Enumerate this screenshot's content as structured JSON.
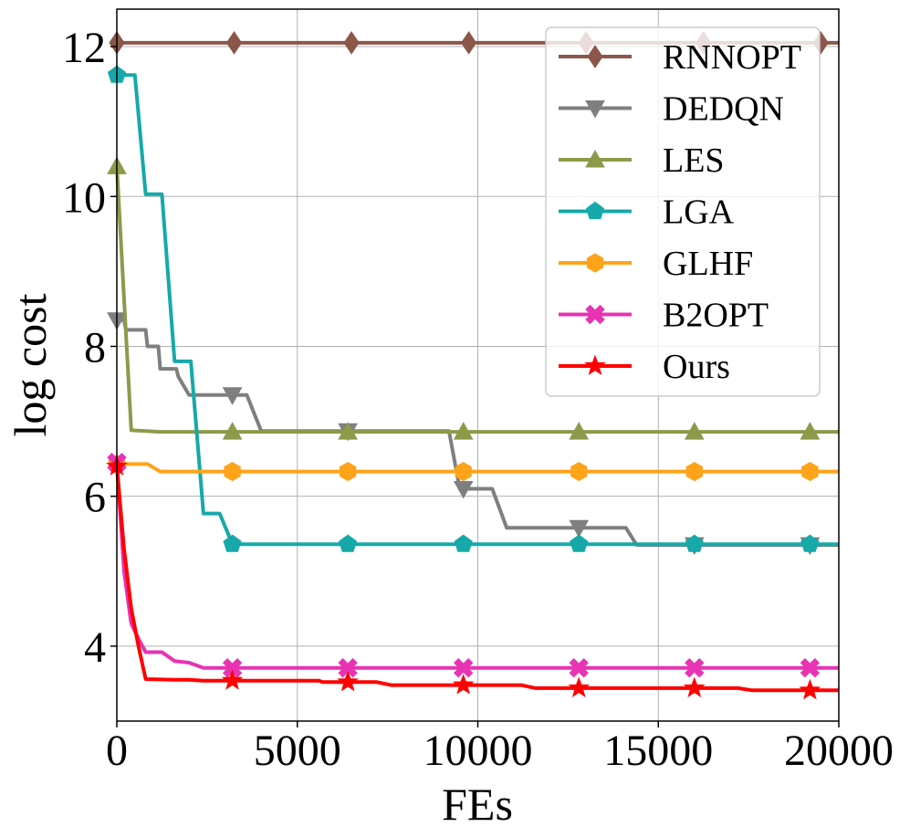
{
  "chart_data": {
    "type": "line",
    "xlabel": "FEs",
    "ylabel": "log cost",
    "xlim": [
      0,
      20000
    ],
    "ylim": [
      3.0,
      12.5
    ],
    "xticks": [
      0,
      5000,
      10000,
      15000,
      20000
    ],
    "yticks": [
      4,
      6,
      8,
      10,
      12
    ],
    "grid": true,
    "legend_position": "top-right",
    "series": [
      {
        "name": "RNNOPT",
        "color": "#8c564b",
        "marker": "diamond",
        "marker_x": [
          0,
          3250,
          6500,
          9750,
          13000,
          16250,
          19500
        ],
        "points": [
          [
            0,
            12.05
          ],
          [
            20000,
            12.05
          ]
        ]
      },
      {
        "name": "DEDQN",
        "color": "#7f7f7f",
        "marker": "triangle-down",
        "marker_x": [
          0,
          3200,
          6400,
          9600,
          12800,
          16000,
          19200
        ],
        "points": [
          [
            0,
            8.35
          ],
          [
            200,
            8.35
          ],
          [
            250,
            8.22
          ],
          [
            800,
            8.22
          ],
          [
            850,
            8.0
          ],
          [
            1150,
            8.0
          ],
          [
            1200,
            7.7
          ],
          [
            1650,
            7.7
          ],
          [
            1700,
            7.6
          ],
          [
            2000,
            7.35
          ],
          [
            3600,
            7.35
          ],
          [
            4000,
            6.87
          ],
          [
            9200,
            6.87
          ],
          [
            9500,
            6.1
          ],
          [
            10400,
            6.1
          ],
          [
            10800,
            5.58
          ],
          [
            14100,
            5.58
          ],
          [
            14400,
            5.35
          ],
          [
            20000,
            5.35
          ]
        ]
      },
      {
        "name": "LES",
        "color": "#8c9a4a",
        "marker": "triangle-up",
        "marker_x": [
          0,
          3200,
          6400,
          9600,
          12800,
          16000,
          19200
        ],
        "points": [
          [
            0,
            10.4
          ],
          [
            400,
            6.88
          ],
          [
            1200,
            6.86
          ],
          [
            20000,
            6.86
          ]
        ]
      },
      {
        "name": "LGA",
        "color": "#17a9a9",
        "marker": "pentagon",
        "marker_x": [
          0,
          3200,
          6400,
          9600,
          12800,
          16000,
          19200
        ],
        "points": [
          [
            0,
            11.62
          ],
          [
            500,
            11.62
          ],
          [
            800,
            10.03
          ],
          [
            1250,
            10.03
          ],
          [
            1600,
            7.8
          ],
          [
            2050,
            7.8
          ],
          [
            2400,
            5.77
          ],
          [
            2850,
            5.77
          ],
          [
            3200,
            5.36
          ],
          [
            20000,
            5.36
          ]
        ]
      },
      {
        "name": "GLHF",
        "color": "#ffa31a",
        "marker": "hexagon",
        "marker_x": [
          0,
          3200,
          6400,
          9600,
          12800,
          16000,
          19200
        ],
        "points": [
          [
            0,
            6.43
          ],
          [
            850,
            6.43
          ],
          [
            1200,
            6.33
          ],
          [
            20000,
            6.33
          ]
        ]
      },
      {
        "name": "B2OPT",
        "color": "#e833b3",
        "marker": "x-filled",
        "marker_x": [
          0,
          3200,
          6400,
          9600,
          12800,
          16000,
          19200
        ],
        "points": [
          [
            0,
            6.45
          ],
          [
            200,
            5.0
          ],
          [
            400,
            4.3
          ],
          [
            600,
            4.1
          ],
          [
            800,
            3.92
          ],
          [
            1250,
            3.92
          ],
          [
            1600,
            3.8
          ],
          [
            2000,
            3.78
          ],
          [
            2400,
            3.71
          ],
          [
            20000,
            3.71
          ]
        ]
      },
      {
        "name": "Ours",
        "color": "#ff0000",
        "marker": "star",
        "marker_x": [
          0,
          3200,
          6400,
          9600,
          12800,
          16000,
          19200
        ],
        "points": [
          [
            0,
            6.4
          ],
          [
            200,
            5.3
          ],
          [
            400,
            4.5
          ],
          [
            600,
            4.0
          ],
          [
            800,
            3.56
          ],
          [
            1600,
            3.55
          ],
          [
            2000,
            3.55
          ],
          [
            2400,
            3.54
          ],
          [
            5600,
            3.54
          ],
          [
            5700,
            3.52
          ],
          [
            7200,
            3.52
          ],
          [
            7600,
            3.48
          ],
          [
            11200,
            3.48
          ],
          [
            11600,
            3.44
          ],
          [
            17200,
            3.44
          ],
          [
            17600,
            3.41
          ],
          [
            20000,
            3.41
          ]
        ]
      }
    ]
  }
}
